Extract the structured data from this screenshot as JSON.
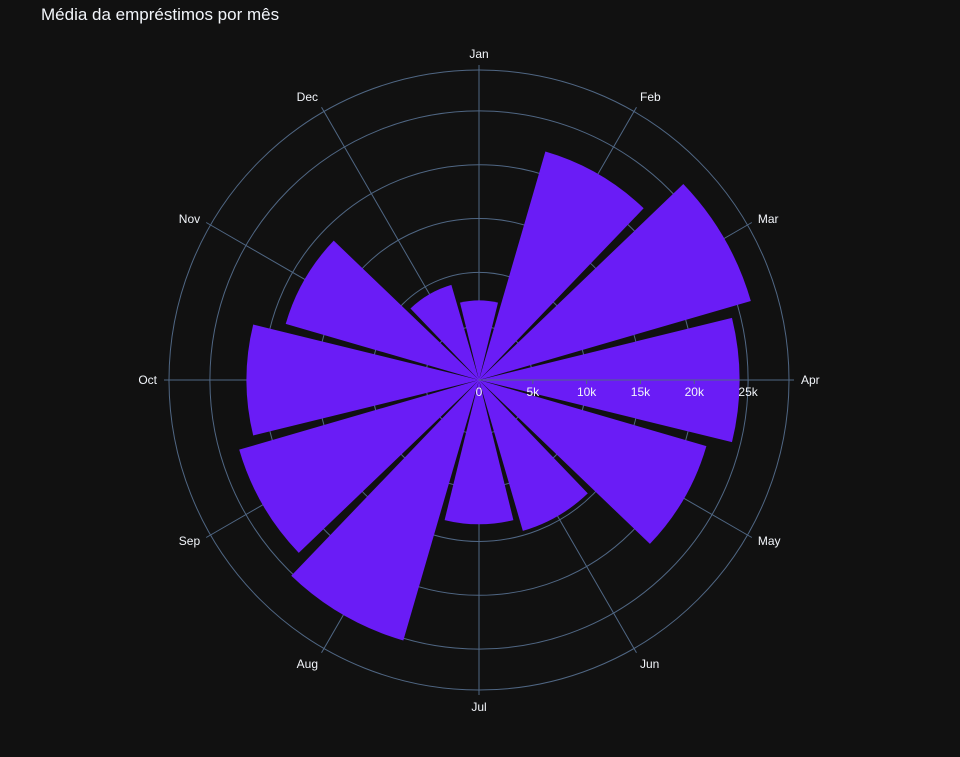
{
  "chart_data": {
    "type": "barpolar",
    "title": "Média da empréstimos por mês",
    "angular_categories": [
      "Jan",
      "Feb",
      "Mar",
      "Apr",
      "May",
      "Jun",
      "Jul",
      "Aug",
      "Sep",
      "Oct",
      "Nov",
      "Dec"
    ],
    "values": [
      7400,
      22100,
      26300,
      24200,
      22000,
      14600,
      13400,
      25200,
      23200,
      21600,
      18700,
      9200
    ],
    "radial_ticks": [
      0,
      5000,
      10000,
      15000,
      20000,
      25000
    ],
    "radial_tick_labels": [
      "0",
      "5k",
      "10k",
      "15k",
      "20k",
      "25k"
    ],
    "radial_range": [
      0,
      28800
    ],
    "direction": "clockwise",
    "rotation_start": "Jan at top",
    "bar_color": "#6a1cf6",
    "background_color": "#111111",
    "grid_color": "#506784",
    "text_color": "#f2f5fa"
  }
}
